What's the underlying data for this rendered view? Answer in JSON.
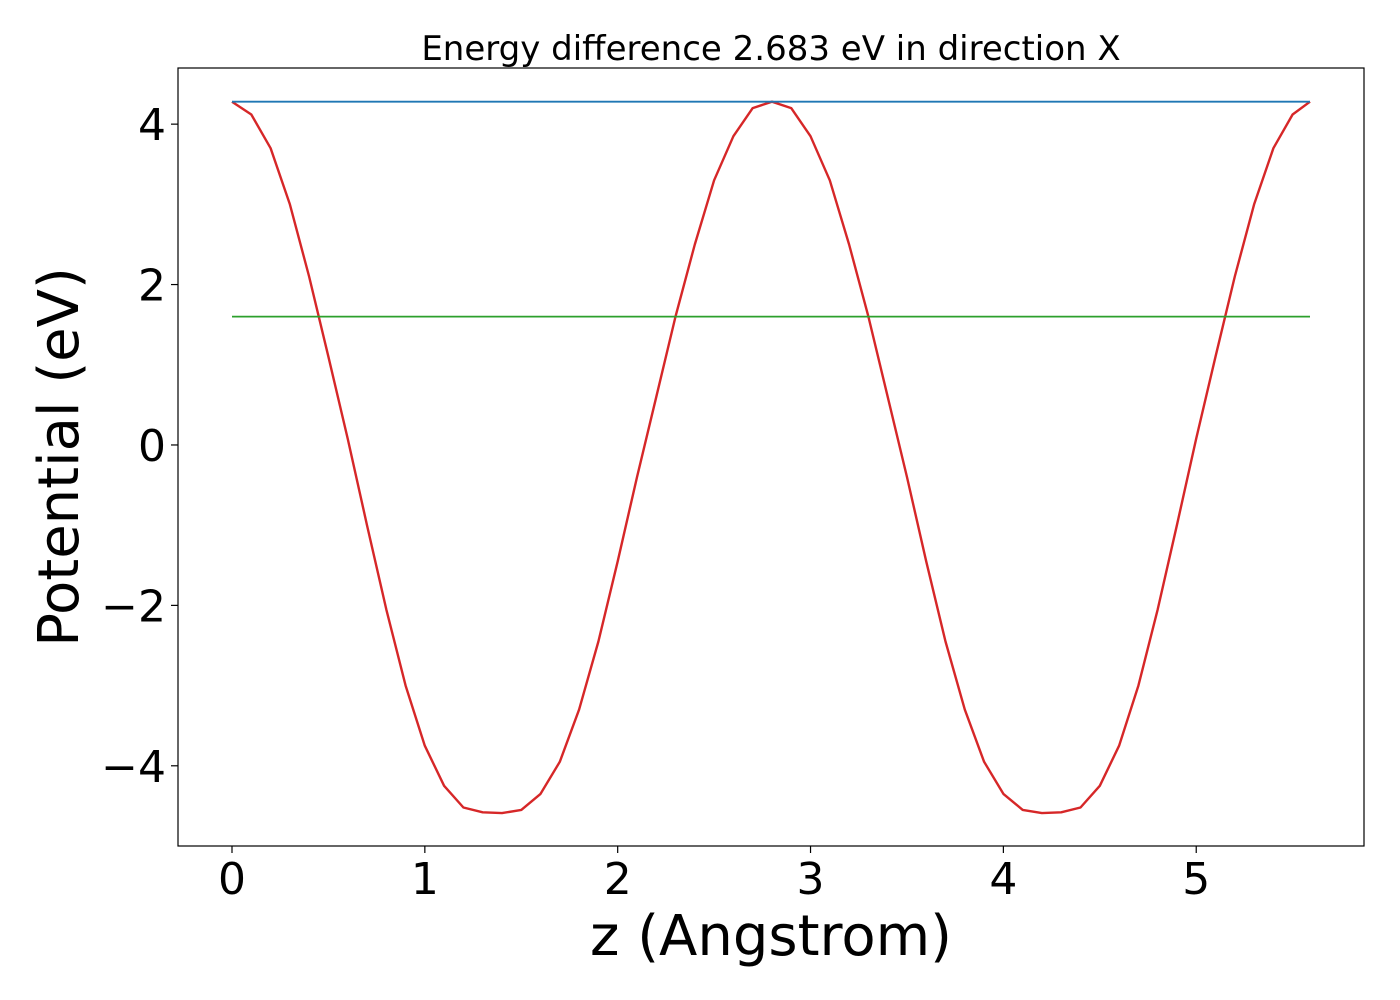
{
  "chart_data": {
    "type": "line",
    "title": "Energy difference 2.683 eV in direction X",
    "xlabel": "z (Angstrom)",
    "ylabel": "Potential (eV)",
    "xlim": [
      -0.28,
      5.87
    ],
    "ylim": [
      -5.0,
      4.7
    ],
    "grid": false,
    "x_ticks": [
      {
        "value": 0,
        "label": "0"
      },
      {
        "value": 1,
        "label": "1"
      },
      {
        "value": 2,
        "label": "2"
      },
      {
        "value": 3,
        "label": "3"
      },
      {
        "value": 4,
        "label": "4"
      },
      {
        "value": 5,
        "label": "5"
      }
    ],
    "y_ticks": [
      {
        "value": 4,
        "label": "4"
      },
      {
        "value": 2,
        "label": "2"
      },
      {
        "value": 0,
        "label": "0"
      },
      {
        "value": -2,
        "label": "−2"
      },
      {
        "value": -4,
        "label": "−4"
      }
    ],
    "series": [
      {
        "color": "#d62728",
        "x": [
          0.0,
          0.1,
          0.2,
          0.3,
          0.4,
          0.5,
          0.6,
          0.7,
          0.8,
          0.9,
          1.0,
          1.1,
          1.2,
          1.3,
          1.4,
          1.5,
          1.6,
          1.7,
          1.8,
          1.9,
          2.0,
          2.1,
          2.2,
          2.3,
          2.4,
          2.5,
          2.6,
          2.7,
          2.8,
          2.9,
          3.0,
          3.1,
          3.2,
          3.3,
          3.4,
          3.5,
          3.6,
          3.7,
          3.8,
          3.9,
          4.0,
          4.1,
          4.2,
          4.3,
          4.4,
          4.5,
          4.6,
          4.7,
          4.8,
          4.9,
          5.0,
          5.1,
          5.2,
          5.3,
          5.4,
          5.5,
          5.59
        ],
        "y": [
          4.28,
          4.12,
          3.7,
          3.0,
          2.1,
          1.1,
          0.08,
          -1.0,
          -2.05,
          -3.0,
          -3.75,
          -4.25,
          -4.52,
          -4.58,
          -4.59,
          -4.55,
          -4.35,
          -3.95,
          -3.3,
          -2.45,
          -1.45,
          -0.4,
          0.6,
          1.6,
          2.5,
          3.3,
          3.85,
          4.2,
          4.28,
          4.2,
          3.85,
          3.3,
          2.5,
          1.6,
          0.6,
          -0.4,
          -1.45,
          -2.45,
          -3.3,
          -3.95,
          -4.35,
          -4.55,
          -4.59,
          -4.58,
          -4.52,
          -4.25,
          -3.75,
          -3.0,
          -2.05,
          -1.0,
          0.08,
          1.1,
          2.1,
          3.0,
          3.7,
          4.12,
          4.28
        ]
      },
      {
        "color": "#1f77b4",
        "x": [
          0.0,
          5.59
        ],
        "y": [
          4.28,
          4.28
        ]
      },
      {
        "color": "#2ca02c",
        "x": [
          0.0,
          5.59
        ],
        "y": [
          1.6,
          1.6
        ]
      }
    ]
  }
}
